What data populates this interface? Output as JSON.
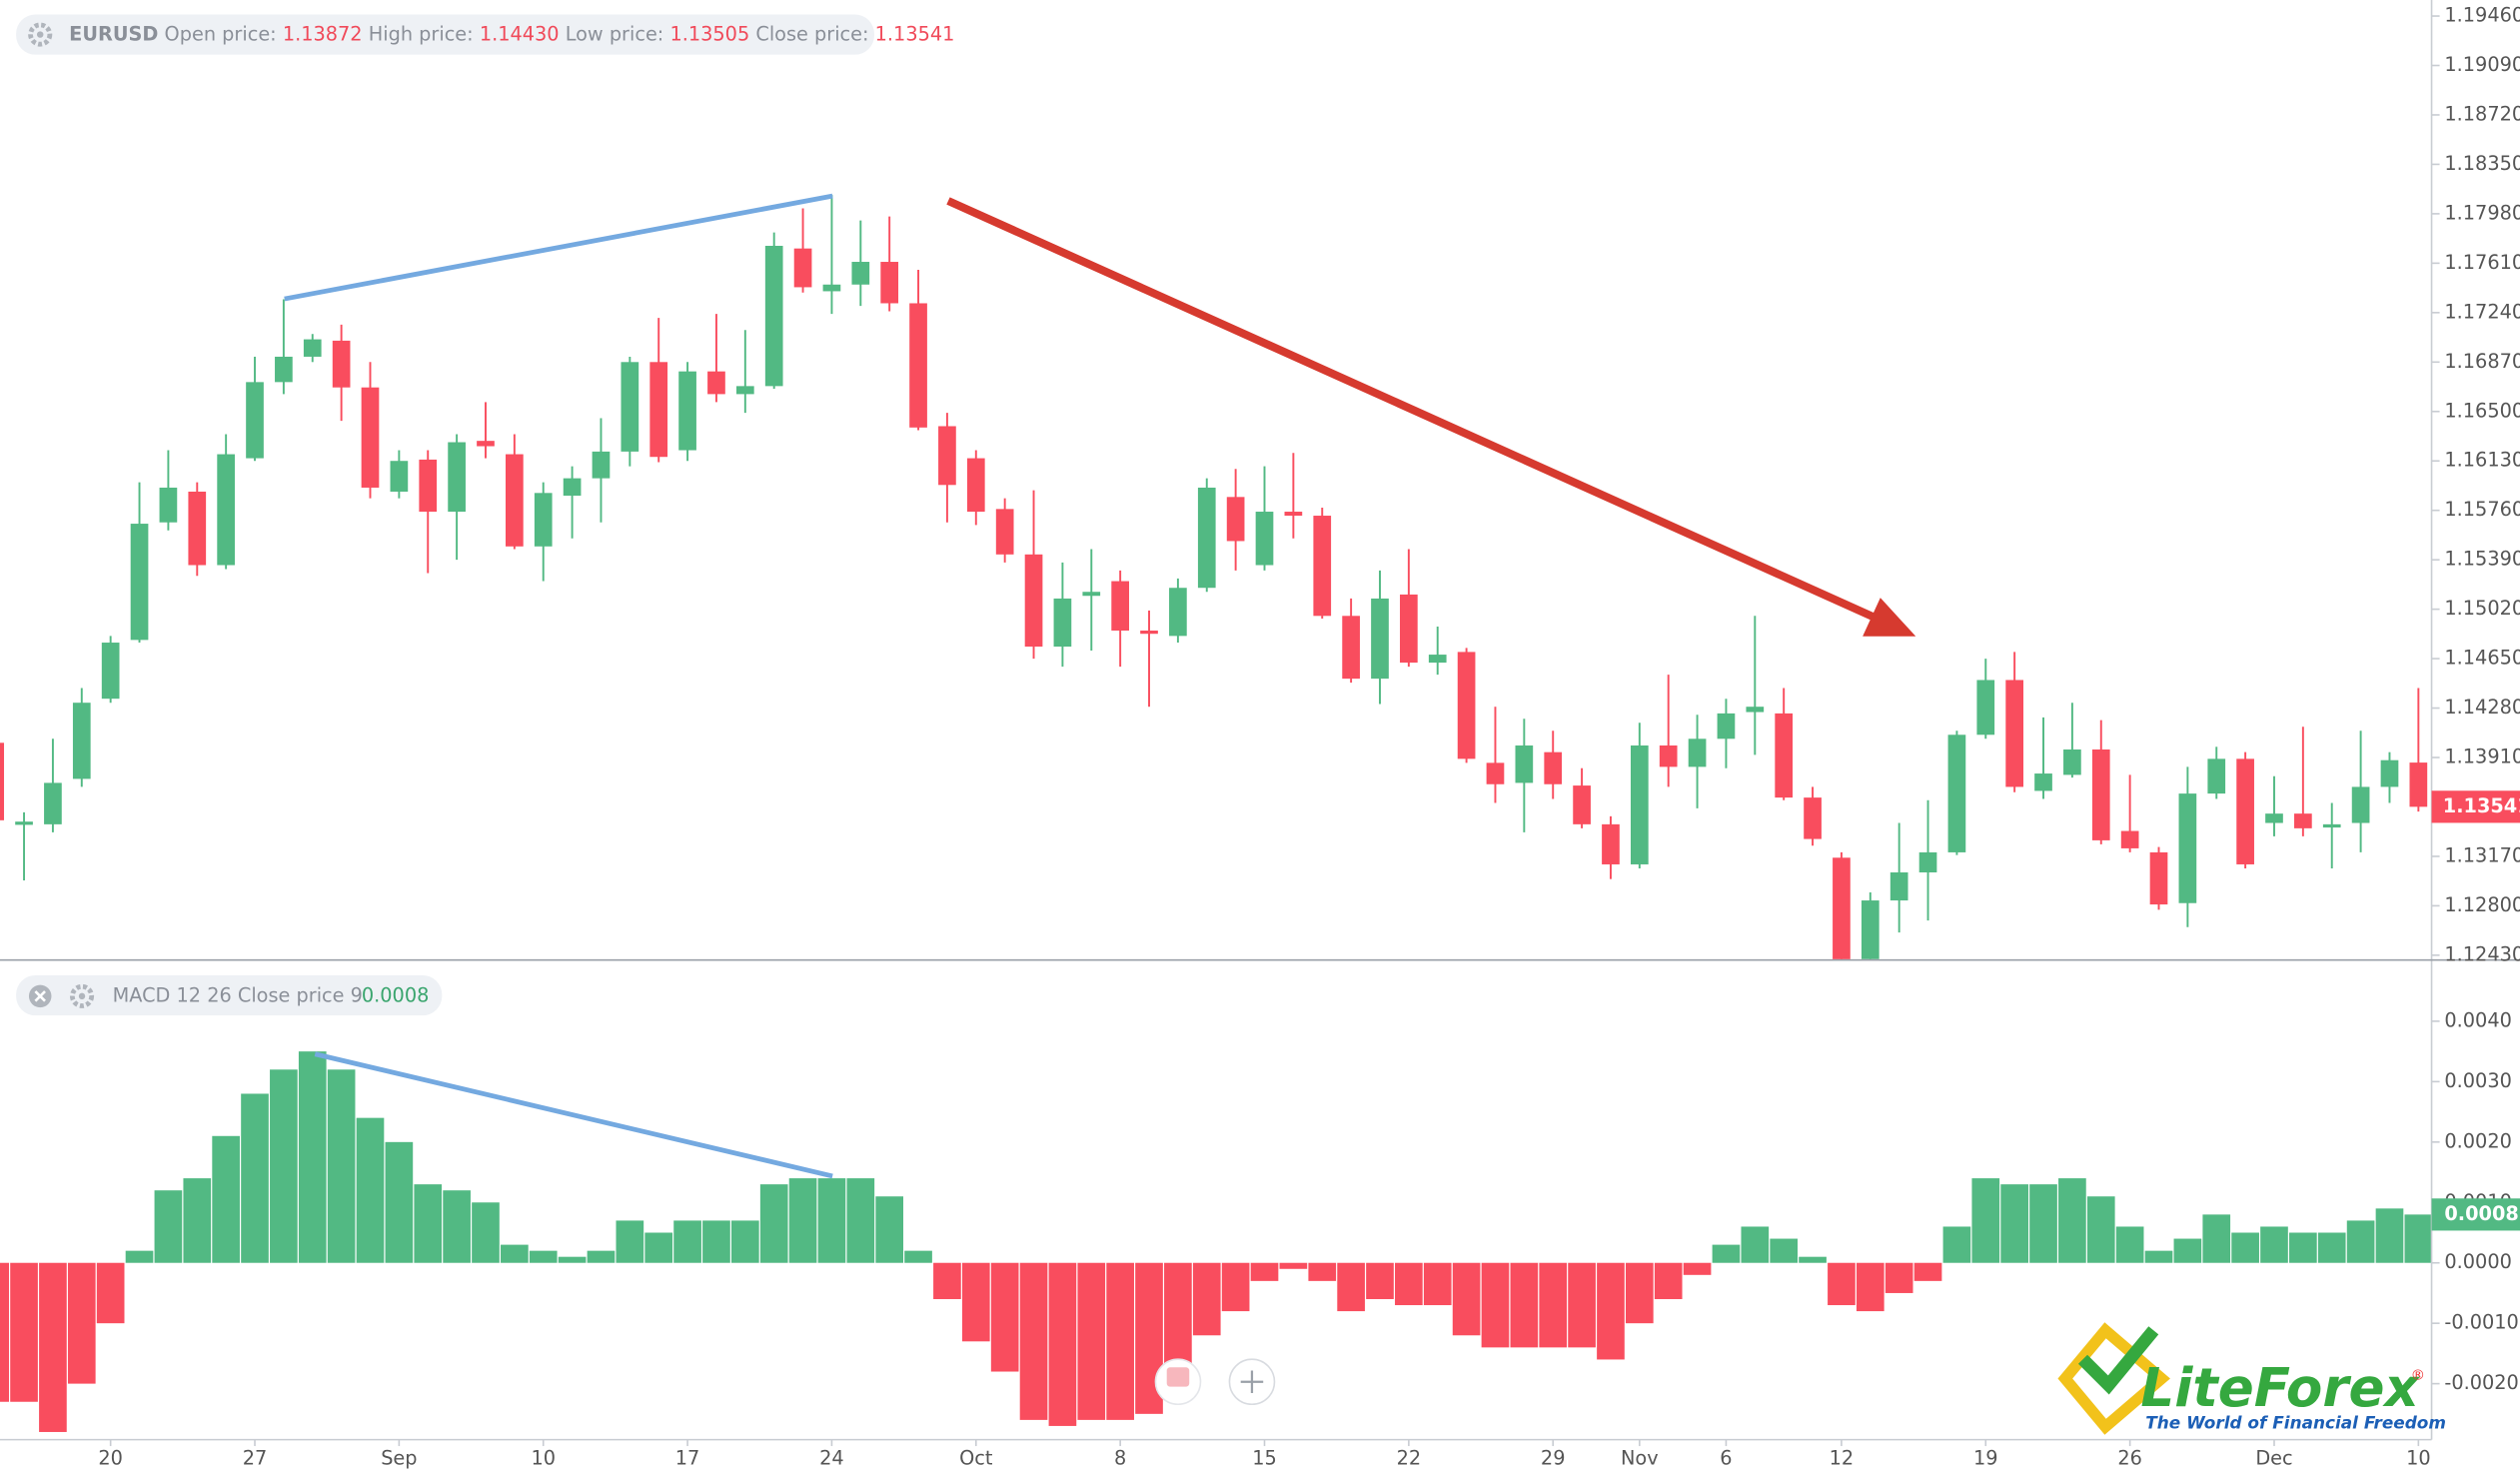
{
  "chart_data": [
    {
      "type": "candlestick",
      "header_labels": [
        "Open price:",
        "High price:",
        "Low price:",
        "Close price:"
      ],
      "header_values": [
        "1.13872",
        "1.14430",
        "1.13505",
        "1.13541"
      ],
      "categories": [
        null,
        null,
        null,
        null,
        "20",
        null,
        null,
        null,
        null,
        "27",
        null,
        null,
        null,
        null,
        "Sep",
        null,
        null,
        null,
        null,
        "10",
        null,
        null,
        null,
        null,
        "17",
        null,
        null,
        null,
        null,
        "24",
        null,
        null,
        null,
        null,
        "Oct",
        null,
        null,
        null,
        null,
        "8",
        null,
        null,
        null,
        null,
        "15",
        null,
        null,
        null,
        null,
        "22",
        null,
        null,
        null,
        null,
        "29",
        null,
        null,
        "Nov",
        null,
        null,
        "6",
        null,
        null,
        null,
        "12",
        null,
        null,
        null,
        null,
        "19",
        null,
        null,
        null,
        null,
        "26",
        null,
        null,
        null,
        null,
        "Dec",
        null,
        null,
        null,
        null,
        "10"
      ],
      "series": [
        {
          "name": "EURUSD",
          "open": [
            1.1402,
            1.1341,
            1.1341,
            1.1375,
            1.1435,
            1.1479,
            1.1567,
            1.159,
            1.1535,
            1.1615,
            1.1672,
            1.1691,
            1.1703,
            1.1668,
            1.159,
            1.1614,
            1.1575,
            1.1628,
            1.1618,
            1.1549,
            1.1587,
            1.16,
            1.162,
            1.1687,
            1.1621,
            1.168,
            1.1663,
            1.1669,
            1.1772,
            1.174,
            1.1745,
            1.1762,
            1.1731,
            1.1639,
            1.1615,
            1.1577,
            1.1543,
            1.1474,
            1.1512,
            1.1523,
            1.1486,
            1.1482,
            1.1518,
            1.1586,
            1.1535,
            1.1575,
            1.1572,
            1.1497,
            1.145,
            1.1513,
            1.1462,
            1.147,
            1.1387,
            1.1372,
            1.1395,
            1.137,
            1.1341,
            1.1311,
            1.14,
            1.1384,
            1.1405,
            1.1425,
            1.1424,
            1.1361,
            1.1316,
            1.124,
            1.1284,
            1.1305,
            1.132,
            1.1408,
            1.1449,
            1.1366,
            1.1378,
            1.1397,
            1.1336,
            1.132,
            1.1282,
            1.1364,
            1.139,
            1.1342,
            1.1349,
            1.134,
            1.1342,
            1.1369,
            1.13872
          ],
          "high": [
            1.1405,
            1.135,
            1.1405,
            1.1443,
            1.1482,
            1.1597,
            1.1621,
            1.1597,
            1.1633,
            1.1691,
            1.1734,
            1.1708,
            1.1715,
            1.1687,
            1.1621,
            1.1621,
            1.1633,
            1.1657,
            1.1633,
            1.1597,
            1.1609,
            1.1645,
            1.1691,
            1.172,
            1.1687,
            1.1723,
            1.1711,
            1.1784,
            1.1802,
            1.1812,
            1.1793,
            1.1796,
            1.1756,
            1.1649,
            1.1621,
            1.1585,
            1.1591,
            1.1537,
            1.1547,
            1.1531,
            1.1501,
            1.1525,
            1.16,
            1.1607,
            1.1609,
            1.1619,
            1.1578,
            1.151,
            1.1531,
            1.1547,
            1.1489,
            1.1473,
            1.1429,
            1.142,
            1.1411,
            1.1383,
            1.1347,
            1.1417,
            1.1453,
            1.1423,
            1.1435,
            1.1497,
            1.1443,
            1.1369,
            1.132,
            1.129,
            1.1342,
            1.1359,
            1.1411,
            1.1465,
            1.147,
            1.1421,
            1.1432,
            1.1419,
            1.1378,
            1.1324,
            1.1384,
            1.1399,
            1.1395,
            1.1377,
            1.1414,
            1.1357,
            1.1411,
            1.1395,
            1.1443
          ],
          "low": [
            1.1338,
            1.1299,
            1.1335,
            1.1369,
            1.1432,
            1.1477,
            1.1561,
            1.1527,
            1.1532,
            1.1613,
            1.1663,
            1.1687,
            1.1643,
            1.1585,
            1.1585,
            1.1529,
            1.1539,
            1.1615,
            1.1547,
            1.1523,
            1.1555,
            1.1567,
            1.1609,
            1.1612,
            1.1613,
            1.1657,
            1.1649,
            1.1667,
            1.1739,
            1.1723,
            1.1729,
            1.1725,
            1.1636,
            1.1567,
            1.1565,
            1.1537,
            1.1465,
            1.1459,
            1.1471,
            1.1459,
            1.1429,
            1.1477,
            1.1515,
            1.1531,
            1.1531,
            1.1555,
            1.1495,
            1.1447,
            1.1431,
            1.1459,
            1.1453,
            1.1387,
            1.1357,
            1.1335,
            1.136,
            1.1338,
            1.13,
            1.1308,
            1.1369,
            1.1353,
            1.1383,
            1.1393,
            1.1359,
            1.1325,
            1.123,
            1.1235,
            1.126,
            1.1269,
            1.1318,
            1.1405,
            1.1365,
            1.136,
            1.1376,
            1.1326,
            1.132,
            1.1277,
            1.1264,
            1.136,
            1.1308,
            1.1332,
            1.1332,
            1.1308,
            1.132,
            1.1357,
            1.13505
          ],
          "close": [
            1.1344,
            1.1343,
            1.1372,
            1.1432,
            1.1477,
            1.1566,
            1.1593,
            1.1535,
            1.1618,
            1.1672,
            1.1691,
            1.1704,
            1.1668,
            1.1593,
            1.1613,
            1.1575,
            1.1627,
            1.1624,
            1.1549,
            1.1589,
            1.16,
            1.162,
            1.1687,
            1.1616,
            1.168,
            1.1663,
            1.1669,
            1.1774,
            1.1743,
            1.1745,
            1.1762,
            1.1731,
            1.1638,
            1.1595,
            1.1575,
            1.1543,
            1.1474,
            1.151,
            1.1515,
            1.1486,
            1.1484,
            1.1518,
            1.1593,
            1.1553,
            1.1575,
            1.1572,
            1.1497,
            1.145,
            1.151,
            1.1462,
            1.1468,
            1.139,
            1.1371,
            1.14,
            1.1371,
            1.1341,
            1.1311,
            1.14,
            1.1384,
            1.1405,
            1.1424,
            1.1429,
            1.1361,
            1.133,
            1.1235,
            1.1284,
            1.1305,
            1.132,
            1.1408,
            1.1449,
            1.1369,
            1.1379,
            1.1397,
            1.1329,
            1.1323,
            1.1281,
            1.1364,
            1.139,
            1.1311,
            1.1349,
            1.1338,
            1.1341,
            1.1369,
            1.1389,
            1.13541
          ]
        }
      ],
      "up_color": "#52b983",
      "down_color": "#f94d5e",
      "ylim": [
        1.124,
        1.1958
      ],
      "yticks": [
        {
          "value": 1.1946,
          "label": "1.19460"
        },
        {
          "value": 1.1909,
          "label": "1.19090"
        },
        {
          "value": 1.1872,
          "label": "1.18720"
        },
        {
          "value": 1.1835,
          "label": "1.18350"
        },
        {
          "value": 1.1798,
          "label": "1.17980"
        },
        {
          "value": 1.1761,
          "label": "1.17610"
        },
        {
          "value": 1.1724,
          "label": "1.17240"
        },
        {
          "value": 1.1687,
          "label": "1.16870"
        },
        {
          "value": 1.165,
          "label": "1.16500"
        },
        {
          "value": 1.1613,
          "label": "1.16130"
        },
        {
          "value": 1.1576,
          "label": "1.15760"
        },
        {
          "value": 1.1539,
          "label": "1.15390"
        },
        {
          "value": 1.1502,
          "label": "1.15020"
        },
        {
          "value": 1.1465,
          "label": "1.14650"
        },
        {
          "value": 1.1428,
          "label": "1.14280"
        },
        {
          "value": 1.1391,
          "label": "1.13910"
        },
        {
          "value": 1.1317,
          "label": "1.13170"
        },
        {
          "value": 1.128,
          "label": "1.12800"
        },
        {
          "value": 1.1243,
          "label": "1.12430"
        }
      ],
      "grid": false
    },
    {
      "type": "bar",
      "title": "MACD 12 26 Close price 9",
      "values": [
        -0.0023,
        -0.0023,
        -0.0028,
        -0.002,
        -0.001,
        0.0002,
        0.0012,
        0.0014,
        0.0021,
        0.0028,
        0.0032,
        0.0035,
        0.0032,
        0.0024,
        0.002,
        0.0013,
        0.0012,
        0.001,
        0.0003,
        0.0002,
        0.0001,
        0.0002,
        0.0007,
        0.0005,
        0.0007,
        0.0007,
        0.0007,
        0.0013,
        0.0014,
        0.0014,
        0.0014,
        0.0011,
        0.0002,
        -0.0006,
        -0.0013,
        -0.0018,
        -0.0026,
        -0.0027,
        -0.0026,
        -0.0026,
        -0.0025,
        -0.0019,
        -0.0012,
        -0.0008,
        -0.0003,
        -0.0001,
        -0.0003,
        -0.0008,
        -0.0006,
        -0.0007,
        -0.0007,
        -0.0012,
        -0.0014,
        -0.0014,
        -0.0014,
        -0.0014,
        -0.0016,
        -0.001,
        -0.0006,
        -0.0002,
        0.0003,
        0.0006,
        0.0004,
        0.0001,
        -0.0007,
        -0.0008,
        -0.0005,
        -0.0003,
        0.0006,
        0.0014,
        0.0013,
        0.0013,
        0.0014,
        0.0011,
        0.0006,
        0.0002,
        0.0004,
        0.0008,
        0.0005,
        0.0006,
        0.0005,
        0.0005,
        0.0007,
        0.0009,
        0.0008
      ],
      "up_color": "#52b983",
      "down_color": "#f94d5e",
      "ylim": [
        -0.0029,
        0.005
      ],
      "yticks": [
        {
          "value": 0.004,
          "label": "0.0040"
        },
        {
          "value": 0.003,
          "label": "0.0030"
        },
        {
          "value": 0.002,
          "label": "0.0020"
        },
        {
          "value": 0.001,
          "label": "0.0010"
        },
        {
          "value": 0,
          "label": "0.0000"
        },
        {
          "value": -0.001,
          "label": "-0.0010"
        },
        {
          "value": -0.002,
          "label": "-0.0020"
        }
      ],
      "grid": false
    }
  ],
  "watermark": {
    "brand": "LiteForex",
    "mark": "®",
    "slogan": "The World of Financial Freedom"
  }
}
